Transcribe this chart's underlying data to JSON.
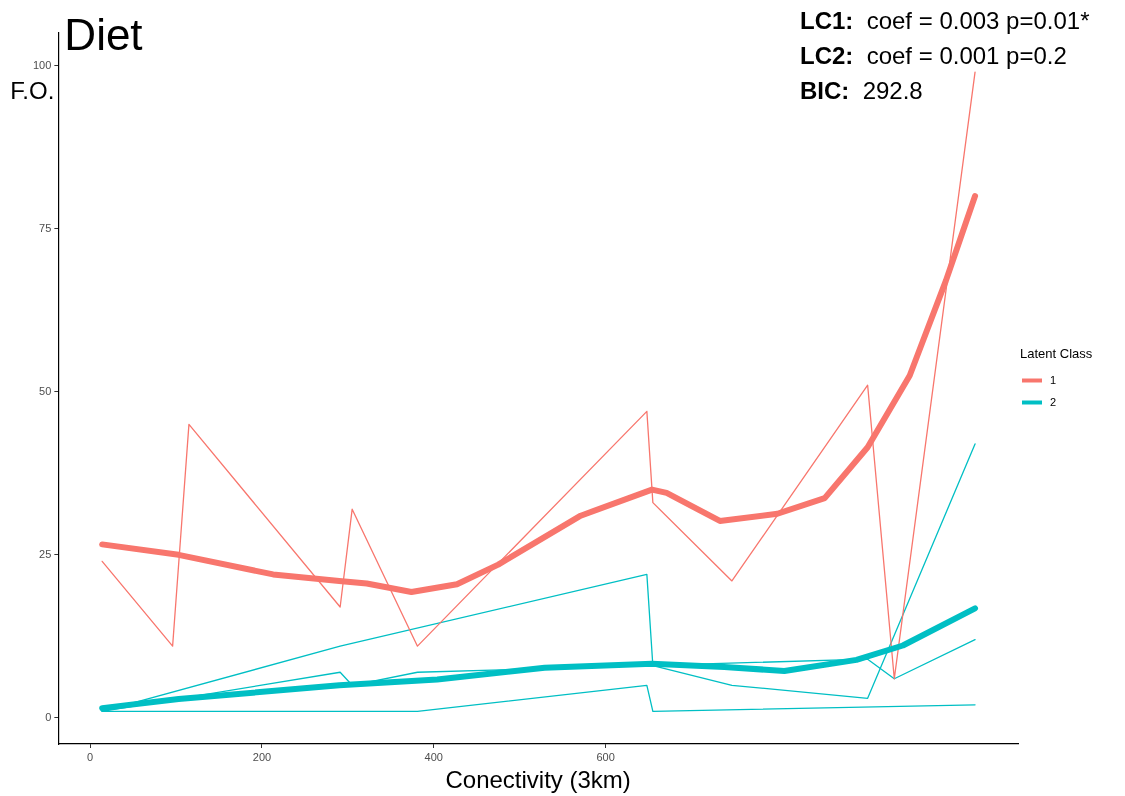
{
  "chart_data": {
    "type": "line",
    "title": "Diet",
    "xlabel": "Conectivity (3km)",
    "ylabel": "F.O.",
    "legend_title": "Latent Class",
    "annotations": [
      "LC1:  coef = 0.003 p=0.01*",
      "LC2:  coef = 0.001 p=0.2",
      "BIC:  292.8"
    ],
    "xlim": [
      -37,
      1080
    ],
    "xticks": [
      0,
      200,
      400,
      600
    ],
    "ylim": [
      -4,
      105
    ],
    "yticks": [
      0,
      25,
      50,
      75,
      100
    ],
    "grid": false,
    "legend": "right",
    "marker": "none",
    "line_style": "solid",
    "series": [
      {
        "color": "#f8766d",
        "x": [
          14,
          96,
          115,
          291,
          305,
          381,
          648,
          655,
          747,
          905,
          936,
          1030
        ],
        "values": [
          24,
          11,
          45,
          17,
          32,
          11,
          47,
          33,
          21,
          51,
          6,
          99
        ]
      },
      {
        "color": "#00bfc4",
        "x": [
          14,
          381,
          648,
          655,
          1030
        ],
        "values": [
          1,
          1,
          5,
          1,
          2
        ]
      },
      {
        "color": "#00bfc4",
        "x": [
          14,
          291,
          648,
          655,
          747,
          905,
          1030
        ],
        "values": [
          1,
          11,
          22,
          8,
          5,
          3,
          42
        ]
      },
      {
        "color": "#00bfc4",
        "x": [
          14,
          291,
          305,
          381,
          905,
          936,
          1030
        ],
        "values": [
          1,
          7,
          5,
          7,
          9,
          6,
          12
        ]
      },
      {
        "name": "1",
        "color": "#f8766d",
        "x": [
          14,
          103,
          213,
          290,
          322,
          374,
          427,
          475,
          571,
          654,
          671,
          733,
          800,
          855,
          905,
          954,
          996,
          1030
        ],
        "values": [
          26.6,
          25,
          22,
          21,
          20.6,
          19.3,
          20.5,
          23.5,
          31,
          35,
          34.5,
          30.2,
          31.3,
          33.7,
          41.5,
          52.5,
          67,
          80
        ]
      },
      {
        "name": "2",
        "color": "#00bfc4",
        "x": [
          14,
          103,
          290,
          404,
          529,
          654,
          738,
          808,
          892,
          946,
          1030
        ],
        "values": [
          1.5,
          2.9,
          5,
          5.9,
          7.7,
          8.3,
          7.8,
          7.2,
          8.9,
          11.1,
          16.8
        ]
      }
    ]
  }
}
